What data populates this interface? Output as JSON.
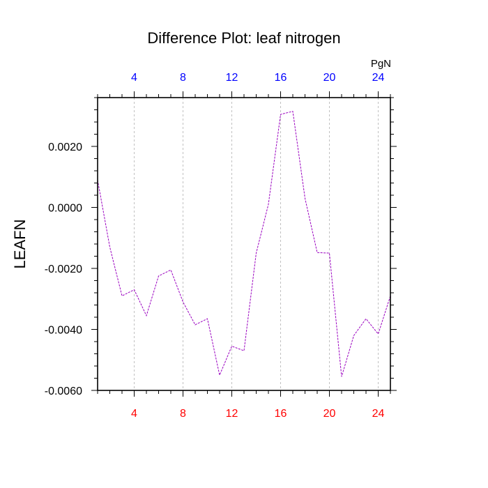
{
  "chart_data": {
    "type": "line",
    "title": "Difference Plot: leaf nitrogen",
    "ylabel": "LEAFN",
    "units": "PgN",
    "x": [
      1,
      2,
      3,
      4,
      5,
      6,
      7,
      8,
      9,
      10,
      11,
      12,
      13,
      14,
      15,
      16,
      17,
      18,
      19,
      20,
      21,
      22,
      23,
      24,
      25
    ],
    "series": [
      {
        "values": [
          0.0009,
          -0.0013,
          -0.0029,
          -0.0027,
          -0.00355,
          -0.00225,
          -0.00205,
          -0.0031,
          -0.00385,
          -0.00365,
          -0.0055,
          -0.00455,
          -0.0047,
          -0.0015,
          0.0001,
          0.00305,
          0.00315,
          0.0003,
          -0.00148,
          -0.0015,
          -0.00555,
          -0.0042,
          -0.00365,
          -0.00415,
          -0.0029
        ],
        "color": "#9a00c0"
      }
    ],
    "xlim": [
      1,
      25
    ],
    "ylim": [
      -0.006,
      0.0036
    ],
    "xticks": [
      4,
      8,
      12,
      16,
      20,
      24
    ],
    "xtick_labels": [
      "4",
      "8",
      "12",
      "16",
      "20",
      "24"
    ],
    "yticks": [
      0.002,
      0.0,
      -0.002,
      -0.004,
      -0.006
    ],
    "ytick_labels": [
      "0.0020",
      "0.0000",
      "-0.0020",
      "-0.0040",
      "-0.0060"
    ],
    "bottom_tick_color": "#ff0000",
    "top_tick_color": "#0000ff",
    "grid": "vertical dashed"
  }
}
